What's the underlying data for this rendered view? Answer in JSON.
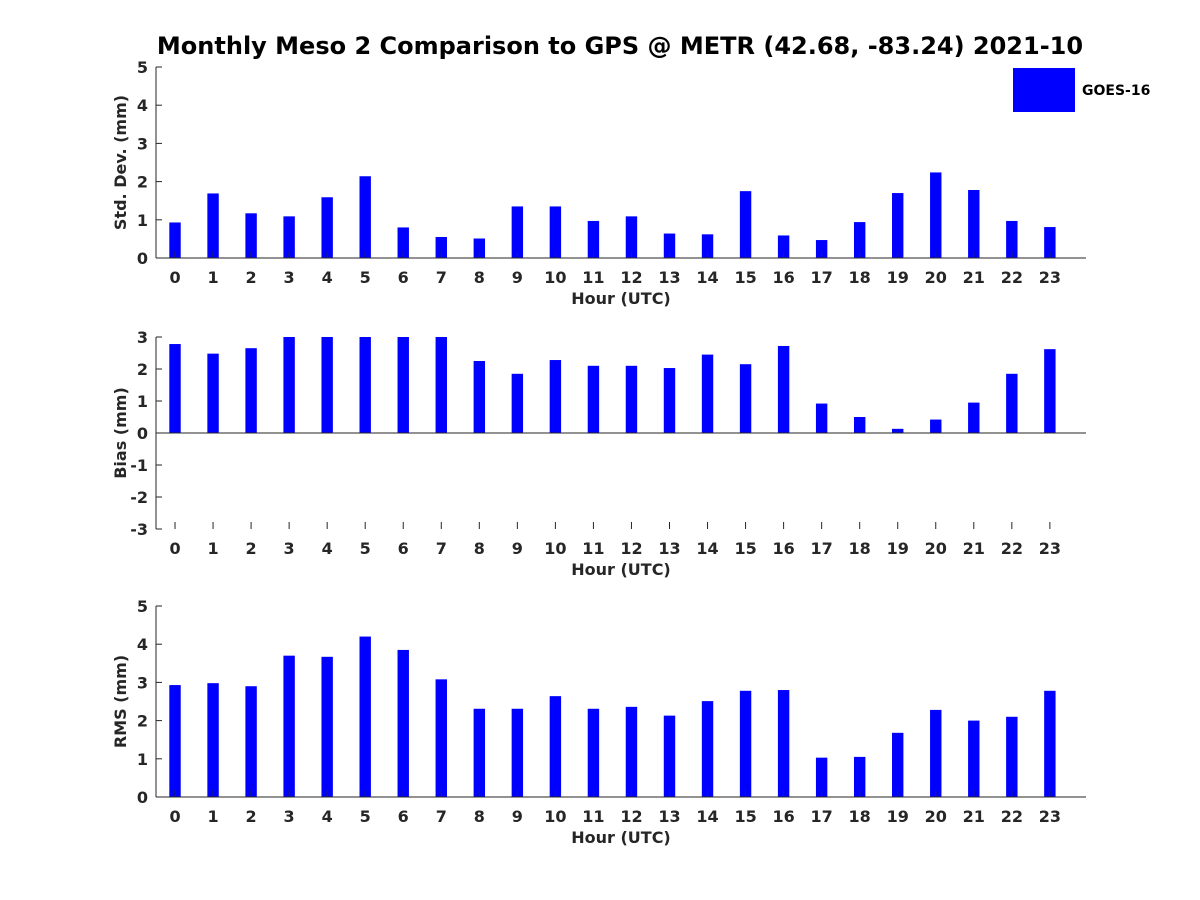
{
  "chart_data": {
    "title": "Monthly Meso 2 Comparison to GPS @ METR (42.68, -83.24) 2021-10",
    "legend": {
      "entries": [
        "GOES-16"
      ],
      "placement": "top-right"
    },
    "colors": {
      "bar": "#0000ff",
      "axis": "#262626"
    },
    "panels": [
      {
        "type": "bar",
        "ylabel": "Std. Dev. (mm)",
        "xlabel": "Hour (UTC)",
        "ylim": [
          0,
          5
        ],
        "yticks": [
          "0",
          "1",
          "2",
          "3",
          "4",
          "5"
        ],
        "series": [
          {
            "name": "GOES-16",
            "values": [
              0.93,
              1.69,
              1.17,
              1.09,
              1.59,
              2.14,
              0.8,
              0.55,
              0.51,
              1.35,
              1.35,
              0.97,
              1.09,
              0.64,
              0.62,
              1.75,
              0.59,
              0.47,
              0.94,
              1.7,
              2.24,
              1.78,
              0.97,
              0.81
            ]
          }
        ]
      },
      {
        "type": "bar",
        "ylabel": "Bias (mm)",
        "xlabel": "Hour (UTC)",
        "ylim": [
          -3,
          3
        ],
        "yticks": [
          "-3",
          "-2",
          "-1",
          "0",
          "1",
          "2",
          "3"
        ],
        "series": [
          {
            "name": "GOES-16",
            "values": [
              2.78,
              2.48,
              2.65,
              3.0,
              3.0,
              3.0,
              3.0,
              3.0,
              2.25,
              1.85,
              2.28,
              2.1,
              2.1,
              2.03,
              2.45,
              2.15,
              2.72,
              0.92,
              0.5,
              0.13,
              0.42,
              0.95,
              1.85,
              2.62
            ]
          }
        ]
      },
      {
        "type": "bar",
        "ylabel": "RMS (mm)",
        "xlabel": "Hour (UTC)",
        "ylim": [
          0,
          5
        ],
        "yticks": [
          "0",
          "1",
          "2",
          "3",
          "4",
          "5"
        ],
        "series": [
          {
            "name": "GOES-16",
            "values": [
              2.93,
              2.98,
              2.9,
              3.7,
              3.67,
              4.2,
              3.85,
              3.08,
              2.31,
              2.31,
              2.64,
              2.31,
              2.36,
              2.13,
              2.51,
              2.78,
              2.8,
              1.03,
              1.05,
              1.68,
              2.28,
              2.0,
              2.1,
              2.78
            ]
          }
        ]
      }
    ],
    "categories": [
      "0",
      "1",
      "2",
      "3",
      "4",
      "5",
      "6",
      "7",
      "8",
      "9",
      "10",
      "11",
      "12",
      "13",
      "14",
      "15",
      "16",
      "17",
      "18",
      "19",
      "20",
      "21",
      "22",
      "23"
    ]
  }
}
